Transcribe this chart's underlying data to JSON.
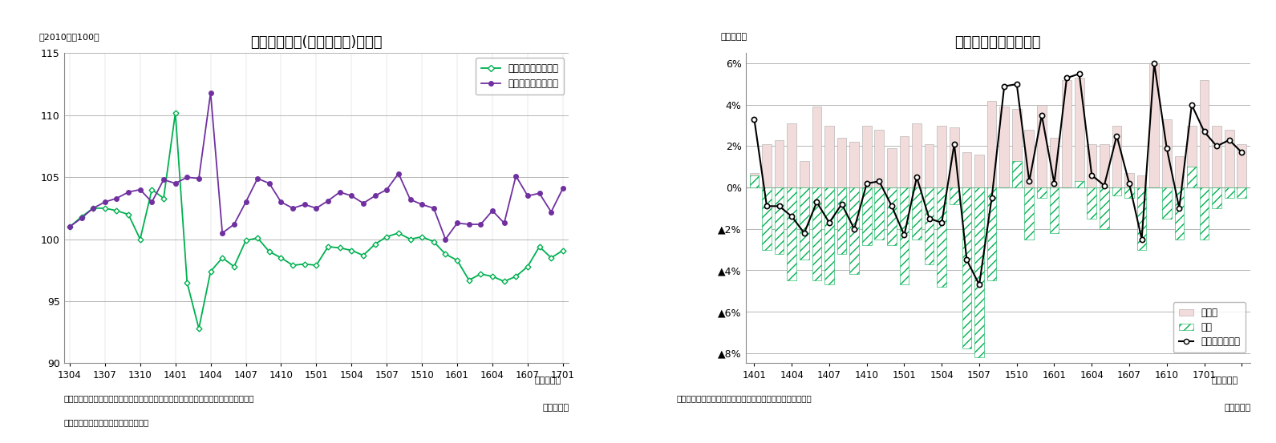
{
  "chart1": {
    "title": "小売業販売額(名目・実質)の推移",
    "ylabel_note": "（2010年＝100）",
    "xlabel_note": "（年・月）",
    "note1": "（注）小売販売額（実質）は消費者物価指数（持家の帰属家賃を除く総合）で実質化",
    "note2": "（資料）経済産業省「商業動態統計」",
    "ylim": [
      90,
      115
    ],
    "yticks": [
      90,
      95,
      100,
      105,
      110,
      115
    ],
    "nominal_color": "#7030A0",
    "real_color": "#00B050",
    "nominal_label": "小売販売額（名目）",
    "real_label": "小売販売額（実質）",
    "nominal_data": [
      101.0,
      101.7,
      102.5,
      103.0,
      103.3,
      103.8,
      104.0,
      103.0,
      104.8,
      104.5,
      105.0,
      104.9,
      111.8,
      100.5,
      101.2,
      103.0,
      104.9,
      104.5,
      103.0,
      102.5,
      102.8,
      102.5,
      103.1,
      103.8,
      103.5,
      102.9,
      103.5,
      104.0,
      105.3,
      103.2,
      102.8,
      102.5,
      100.0,
      101.3,
      101.2,
      101.2,
      102.3,
      101.3,
      105.1,
      103.5,
      103.7,
      102.2,
      104.1
    ],
    "real_data": [
      101.0,
      101.8,
      102.5,
      102.5,
      102.3,
      102.0,
      100.0,
      104.0,
      103.3,
      110.2,
      96.5,
      92.8,
      97.4,
      98.5,
      97.8,
      99.9,
      100.1,
      99.0,
      98.5,
      97.9,
      98.0,
      97.9,
      99.4,
      99.3,
      99.1,
      98.7,
      99.6,
      100.2,
      100.5,
      100.0,
      100.2,
      99.8,
      98.8,
      98.3,
      96.7,
      97.2,
      97.0,
      96.6,
      97.0,
      97.8,
      99.4,
      98.5,
      99.1
    ],
    "xtick_positions": [
      0,
      3,
      6,
      9,
      12,
      15,
      18,
      21,
      24,
      27,
      30,
      33,
      36,
      39,
      42
    ],
    "xtick_labels": [
      "1304",
      "1307",
      "1310",
      "1401",
      "1404",
      "1407",
      "1410",
      "1501",
      "1504",
      "1507",
      "1510",
      "1601",
      "1604",
      "1607",
      "1701"
    ]
  },
  "chart2": {
    "title": "外食産業売上高の推移",
    "ylabel_note": "（前年比）",
    "xlabel_note": "（年・月）",
    "note": "（資料）日本フードサービス協会「外食産業市場動向調査」",
    "ylim_pct": [
      -8.5,
      6.5
    ],
    "ytick_vals": [
      6,
      4,
      2,
      0,
      -2,
      -4,
      -6,
      -8
    ],
    "ytick_labels": [
      "6%",
      "4%",
      "2%",
      "0%",
      "▲2%",
      "▲4%",
      "▲6%",
      "▲8%"
    ],
    "bar_color_kyaku": "#F2DCDB",
    "bar_hatch_kazu": "///",
    "bar_color_kazu_edge": "#00B050",
    "kyaku_label": "客単価",
    "kazu_label": "客数",
    "uriage_label": "外食産業売上高",
    "kyaku_data": [
      0.7,
      2.1,
      2.3,
      3.1,
      1.3,
      3.9,
      3.0,
      2.4,
      2.2,
      3.0,
      2.8,
      1.9,
      2.5,
      3.1,
      2.1,
      3.0,
      2.9,
      1.7,
      1.6,
      4.2,
      3.9,
      3.8,
      2.8,
      4.0,
      2.4,
      5.2,
      5.3,
      2.1,
      2.1,
      3.0,
      0.7,
      0.6,
      6.0,
      3.3,
      1.5,
      3.0,
      5.2,
      3.0,
      2.8,
      2.1
    ],
    "kazu_data": [
      0.6,
      -3.0,
      -3.2,
      -4.5,
      -3.5,
      -4.5,
      -4.7,
      -3.2,
      -4.2,
      -2.8,
      -2.5,
      -2.8,
      -4.7,
      -2.5,
      -3.7,
      -4.8,
      -0.8,
      -7.8,
      -8.2,
      -4.5,
      0.0,
      1.3,
      -2.5,
      -0.5,
      -2.2,
      0.0,
      0.3,
      -1.5,
      -2.0,
      -0.4,
      -0.5,
      -3.0,
      0.0,
      -1.5,
      -2.5,
      1.0,
      -2.5,
      -1.0,
      -0.5,
      -0.5
    ],
    "uriage_data": [
      3.3,
      -0.9,
      -0.9,
      -1.4,
      -2.2,
      -0.7,
      -1.7,
      -0.8,
      -2.0,
      0.2,
      0.3,
      -0.9,
      -2.3,
      0.5,
      -1.5,
      -1.7,
      2.1,
      -3.5,
      -4.7,
      -0.5,
      4.9,
      5.0,
      0.3,
      3.5,
      0.2,
      5.3,
      5.5,
      0.6,
      0.1,
      2.5,
      0.2,
      -2.5,
      6.0,
      1.9,
      -1.0,
      4.0,
      2.7,
      2.0,
      2.3,
      1.7
    ],
    "xtick_positions": [
      0,
      3,
      6,
      9,
      12,
      15,
      18,
      21,
      24,
      27,
      30,
      33,
      36,
      39
    ],
    "xtick_labels": [
      "1401",
      "1404",
      "1407",
      "1410",
      "1501",
      "1504",
      "1507",
      "1510",
      "1601",
      "1604",
      "1607",
      "1610",
      "1701",
      ""
    ]
  }
}
